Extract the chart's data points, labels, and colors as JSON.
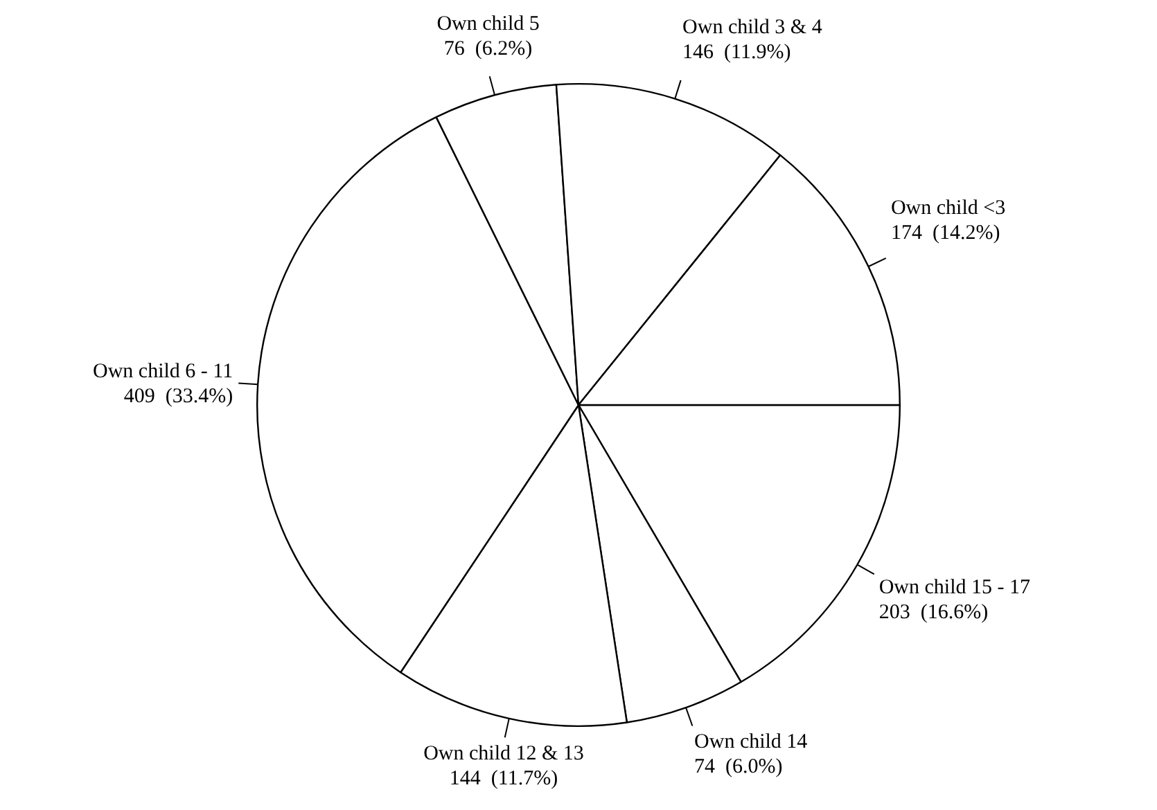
{
  "chart_data": {
    "type": "pie",
    "categories": [
      "Own child 15 - 17",
      "Own child 14",
      "Own child 12 & 13",
      "Own child 6 - 11",
      "Own child 5",
      "Own child 3 & 4",
      "Own child <3"
    ],
    "values": [
      203,
      74,
      144,
      409,
      76,
      146,
      174
    ],
    "value_labels": [
      "203  (16.6%)",
      "74  (6.0%)",
      "144  (11.7%)",
      "409  (33.4%)",
      "76  (6.2%)",
      "146  (11.9%)",
      "174  (14.2%)"
    ],
    "colors": [
      "#ffffff",
      "#ffffff",
      "#ffffff",
      "#ffffff",
      "#ffffff",
      "#ffffff",
      "#ffffff"
    ]
  }
}
